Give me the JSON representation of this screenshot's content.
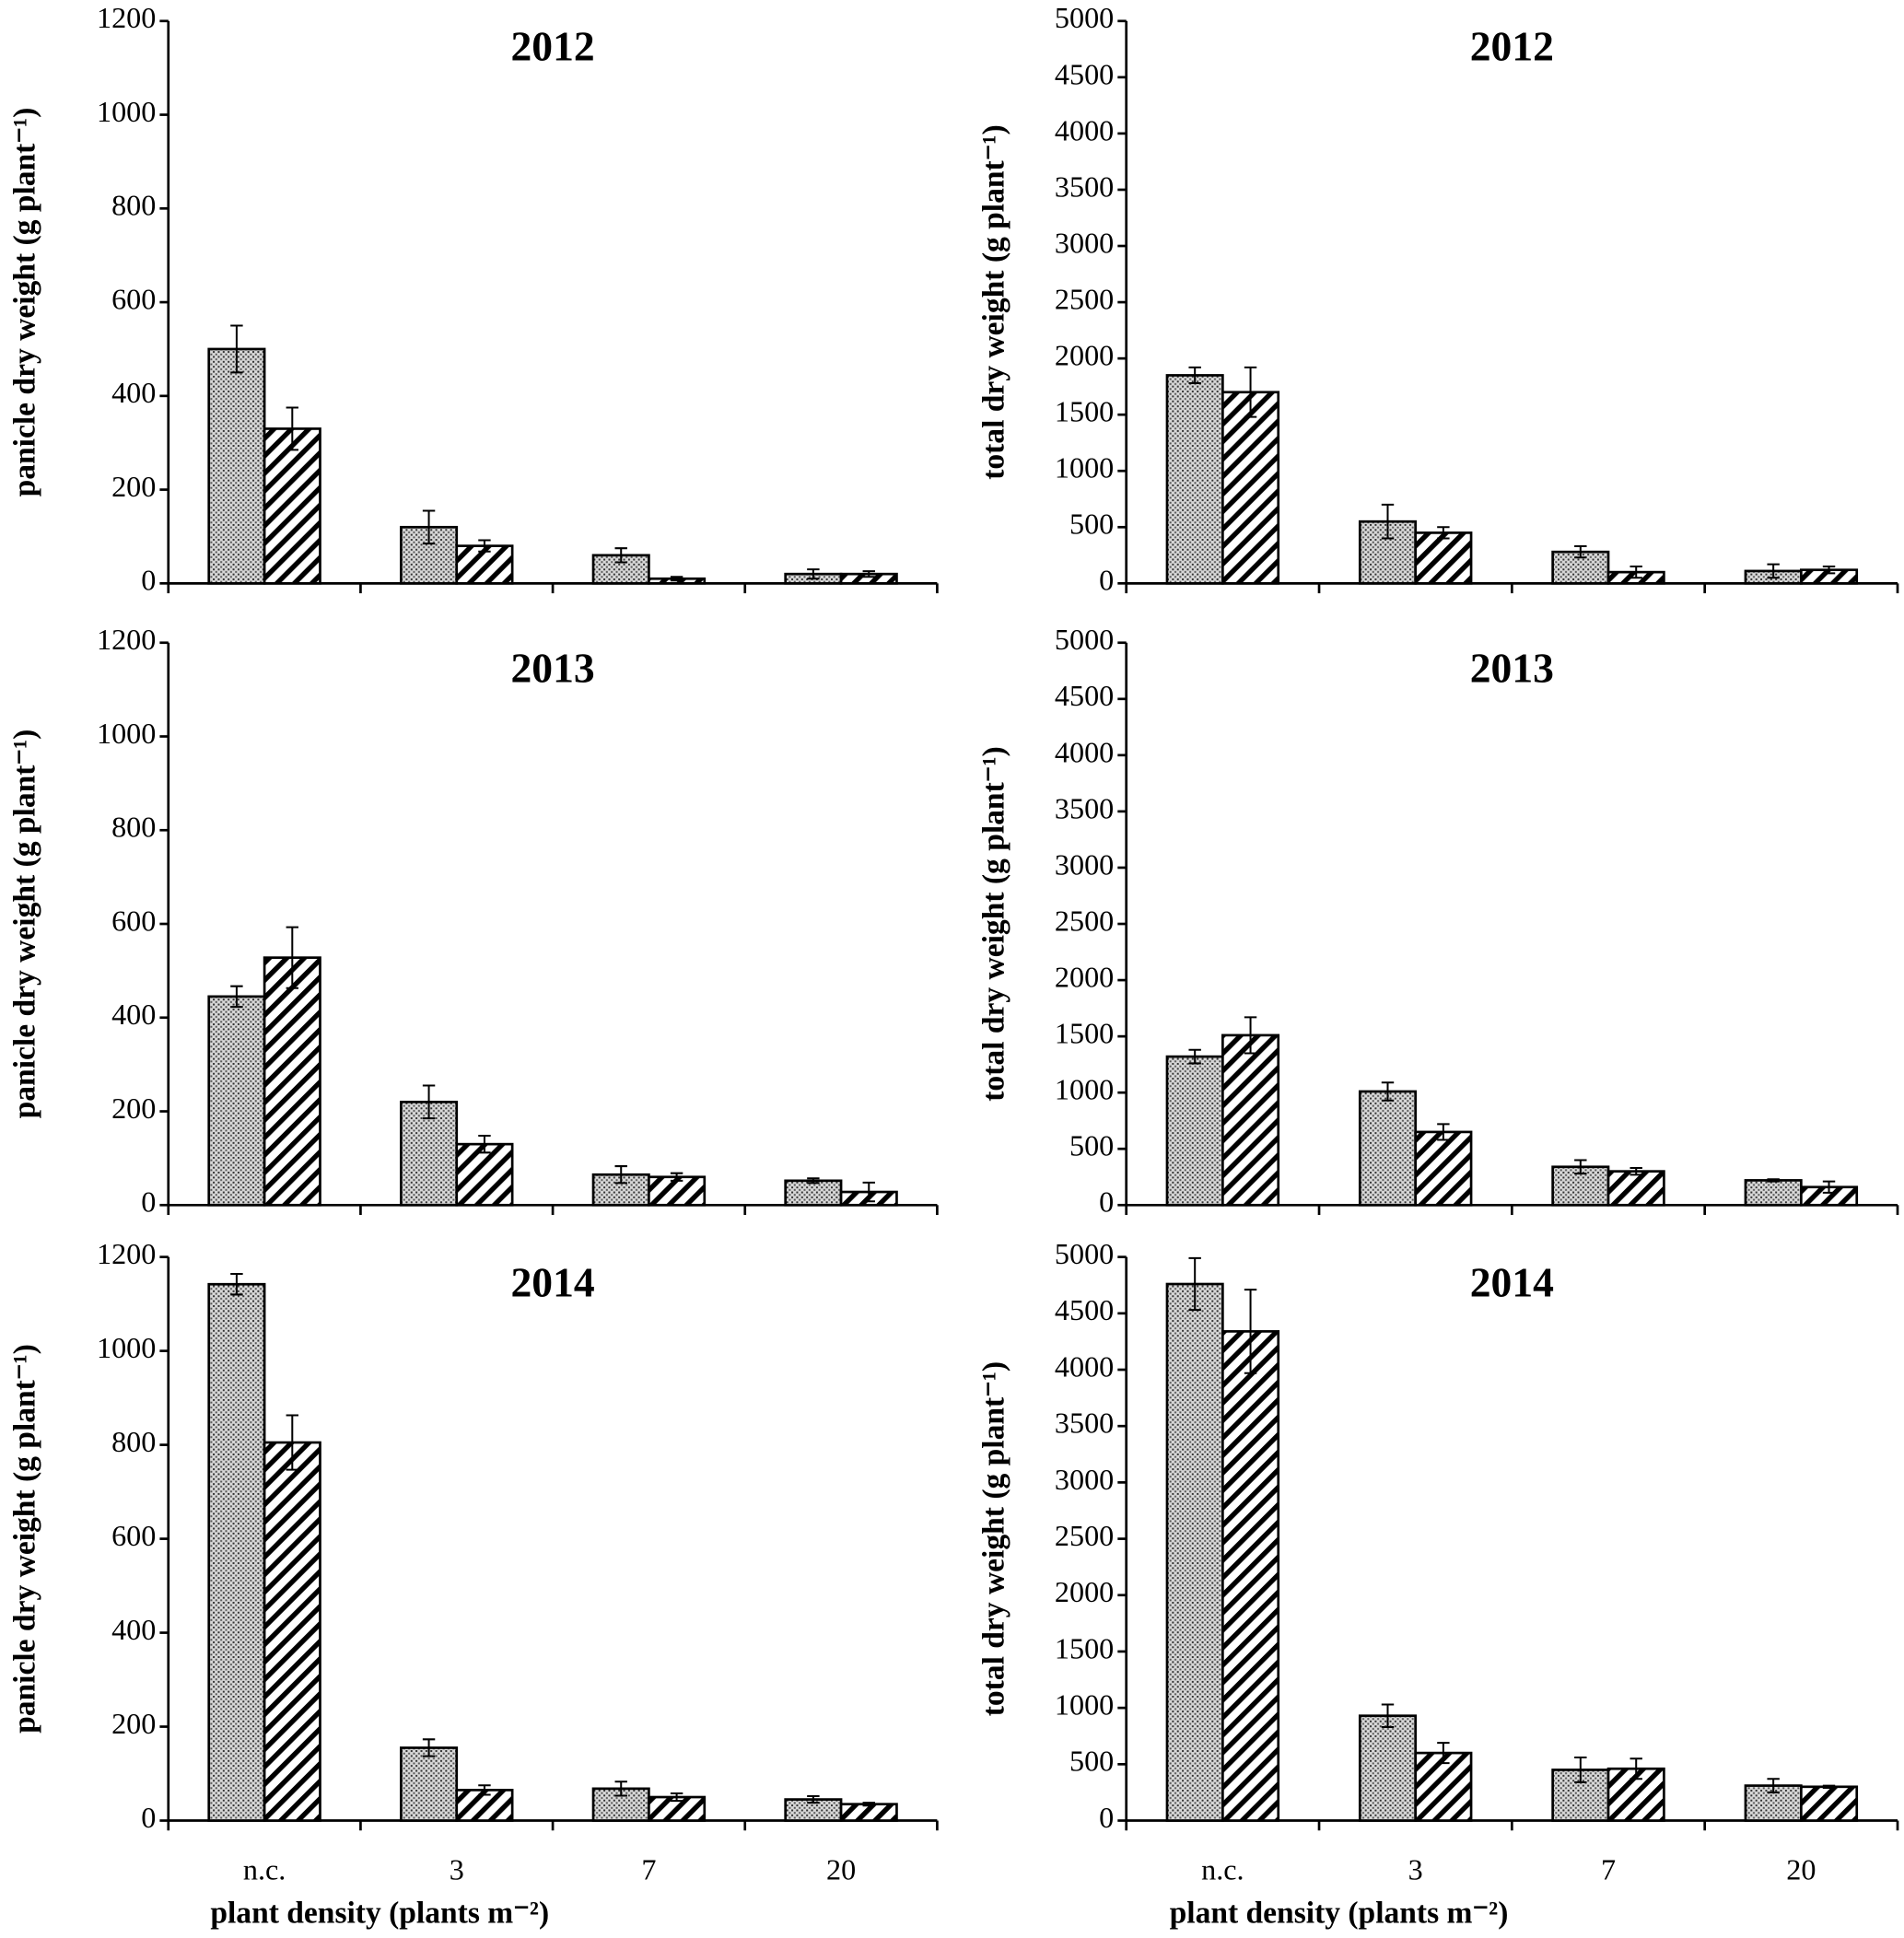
{
  "chart_data": [
    {
      "type": "bar",
      "title": "2012",
      "y_label": "panicle dry weight (g plant⁻¹)",
      "categories": [
        null,
        null,
        null,
        null
      ],
      "series": [
        {
          "pattern": "dots",
          "color": "#000000",
          "values": [
            500,
            120,
            60,
            20
          ],
          "errors": [
            50,
            35,
            15,
            10
          ]
        },
        {
          "pattern": "hatch",
          "color": "#000000",
          "values": [
            330,
            80,
            10,
            20
          ],
          "errors": [
            45,
            12,
            4,
            6
          ]
        }
      ],
      "ylim": [
        0,
        1200
      ],
      "yticks": [
        0,
        200,
        400,
        600,
        800,
        1000,
        1200
      ]
    },
    {
      "type": "bar",
      "title": "2012",
      "y_label": "total dry weight (g plant⁻¹)",
      "categories": [
        null,
        null,
        null,
        null
      ],
      "series": [
        {
          "pattern": "dots",
          "color": "#000000",
          "values": [
            1850,
            550,
            280,
            110
          ],
          "errors": [
            70,
            150,
            50,
            60
          ]
        },
        {
          "pattern": "hatch",
          "color": "#000000",
          "values": [
            1700,
            450,
            100,
            120
          ],
          "errors": [
            220,
            50,
            50,
            30
          ]
        }
      ],
      "ylim": [
        0,
        5000
      ],
      "yticks": [
        0,
        500,
        1000,
        1500,
        2000,
        2500,
        3000,
        3500,
        4000,
        4500,
        5000
      ]
    },
    {
      "type": "bar",
      "title": "2013",
      "y_label": "panicle dry weight (g plant⁻¹)",
      "categories": [
        null,
        null,
        null,
        null
      ],
      "series": [
        {
          "pattern": "dots",
          "color": "#000000",
          "values": [
            445,
            220,
            65,
            52
          ],
          "errors": [
            22,
            35,
            18,
            5
          ]
        },
        {
          "pattern": "hatch",
          "color": "#000000",
          "values": [
            528,
            130,
            60,
            28
          ],
          "errors": [
            65,
            18,
            8,
            20
          ]
        }
      ],
      "ylim": [
        0,
        1200
      ],
      "yticks": [
        0,
        200,
        400,
        600,
        800,
        1000,
        1200
      ]
    },
    {
      "type": "bar",
      "title": "2013",
      "y_label": "total dry weight (g plant⁻¹)",
      "categories": [
        null,
        null,
        null,
        null
      ],
      "series": [
        {
          "pattern": "dots",
          "color": "#000000",
          "values": [
            1320,
            1010,
            340,
            220
          ],
          "errors": [
            60,
            80,
            60,
            10
          ]
        },
        {
          "pattern": "hatch",
          "color": "#000000",
          "values": [
            1510,
            650,
            300,
            160
          ],
          "errors": [
            160,
            70,
            30,
            50
          ]
        }
      ],
      "ylim": [
        0,
        5000
      ],
      "yticks": [
        0,
        500,
        1000,
        1500,
        2000,
        2500,
        3000,
        3500,
        4000,
        4500,
        5000
      ]
    },
    {
      "type": "bar",
      "title": "2014",
      "y_label": "panicle dry weight (g plant⁻¹)",
      "x_label": "plant density (plants m⁻²)",
      "categories": [
        "n.c.",
        "3",
        "7",
        "20"
      ],
      "series": [
        {
          "pattern": "dots",
          "color": "#000000",
          "values": [
            1142,
            155,
            68,
            45
          ],
          "errors": [
            22,
            18,
            15,
            7
          ]
        },
        {
          "pattern": "hatch",
          "color": "#000000",
          "values": [
            805,
            65,
            50,
            35
          ],
          "errors": [
            58,
            10,
            8,
            3
          ]
        }
      ],
      "ylim": [
        0,
        1200
      ],
      "yticks": [
        0,
        200,
        400,
        600,
        800,
        1000,
        1200
      ]
    },
    {
      "type": "bar",
      "title": "2014",
      "y_label": "total dry weight (g plant⁻¹)",
      "x_label": "plant density (plants m⁻²)",
      "categories": [
        "n.c.",
        "3",
        "7",
        "20"
      ],
      "series": [
        {
          "pattern": "dots",
          "color": "#000000",
          "values": [
            4760,
            930,
            450,
            310
          ],
          "errors": [
            230,
            100,
            110,
            60
          ]
        },
        {
          "pattern": "hatch",
          "color": "#000000",
          "values": [
            4340,
            600,
            460,
            300
          ],
          "errors": [
            370,
            90,
            90,
            10
          ]
        }
      ],
      "ylim": [
        0,
        5000
      ],
      "yticks": [
        0,
        500,
        1000,
        1500,
        2000,
        2500,
        3000,
        3500,
        4000,
        4500,
        5000
      ]
    }
  ]
}
